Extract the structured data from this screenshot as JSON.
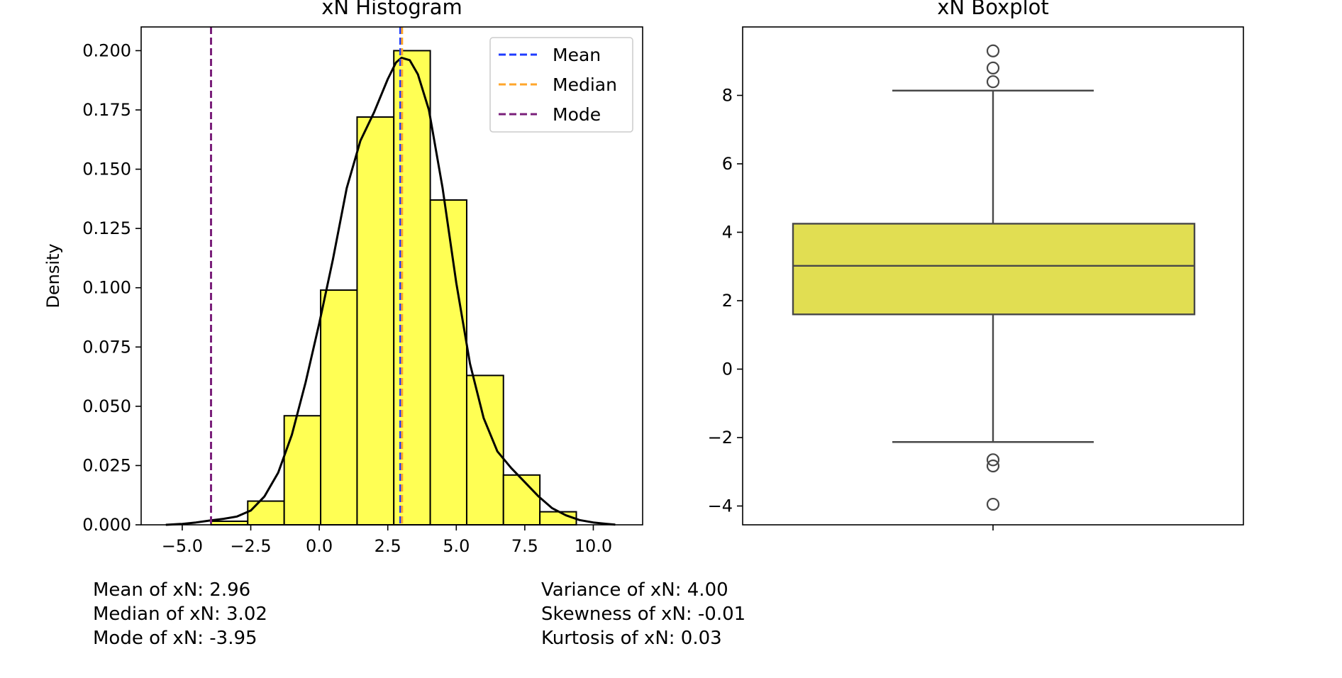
{
  "chart_data": [
    {
      "type": "bar",
      "title": "xN Histogram",
      "xlabel": "",
      "ylabel": "Density",
      "xlim": [
        -6.5,
        11.8
      ],
      "ylim": [
        0,
        0.21
      ],
      "xticks": [
        "−5.0",
        "−2.5",
        "0.0",
        "2.5",
        "5.0",
        "7.5",
        "10.0"
      ],
      "xtick_values": [
        -5,
        -2.5,
        0,
        2.5,
        5,
        7.5,
        10
      ],
      "yticks": [
        "0.000",
        "0.025",
        "0.050",
        "0.075",
        "0.100",
        "0.125",
        "0.150",
        "0.175",
        "0.200"
      ],
      "ytick_values": [
        0,
        0.025,
        0.05,
        0.075,
        0.1,
        0.125,
        0.15,
        0.175,
        0.2
      ],
      "bins": [
        {
          "x0": -3.95,
          "x1": -2.61,
          "value": 0.0015
        },
        {
          "x0": -2.61,
          "x1": -1.28,
          "value": 0.01
        },
        {
          "x0": -1.28,
          "x1": 0.05,
          "value": 0.046
        },
        {
          "x0": 0.05,
          "x1": 1.38,
          "value": 0.099
        },
        {
          "x0": 1.38,
          "x1": 2.72,
          "value": 0.172
        },
        {
          "x0": 2.72,
          "x1": 4.05,
          "value": 0.2
        },
        {
          "x0": 4.05,
          "x1": 5.38,
          "value": 0.137
        },
        {
          "x0": 5.38,
          "x1": 6.72,
          "value": 0.063
        },
        {
          "x0": 6.72,
          "x1": 8.05,
          "value": 0.021
        },
        {
          "x0": 8.05,
          "x1": 9.38,
          "value": 0.0055
        }
      ],
      "kde": {
        "x": [
          -5.6,
          -5.0,
          -4.5,
          -4.0,
          -3.5,
          -3.0,
          -2.5,
          -2.0,
          -1.5,
          -1.0,
          -0.5,
          0.0,
          0.5,
          1.0,
          1.5,
          2.0,
          2.5,
          2.8,
          3.0,
          3.3,
          3.6,
          4.0,
          4.5,
          5.0,
          5.5,
          6.0,
          6.5,
          7.0,
          7.5,
          8.0,
          8.5,
          9.0,
          9.5,
          10.0,
          10.5,
          10.8
        ],
        "y": [
          0.0,
          0.0004,
          0.001,
          0.0018,
          0.0025,
          0.0035,
          0.006,
          0.012,
          0.022,
          0.038,
          0.06,
          0.085,
          0.112,
          0.142,
          0.162,
          0.174,
          0.188,
          0.195,
          0.197,
          0.196,
          0.19,
          0.175,
          0.142,
          0.102,
          0.068,
          0.045,
          0.031,
          0.024,
          0.018,
          0.012,
          0.007,
          0.004,
          0.002,
          0.001,
          0.0004,
          0.0001
        ]
      },
      "lines": [
        {
          "name": "Mean",
          "x": 2.96,
          "color": "#1f3bff"
        },
        {
          "name": "Median",
          "x": 3.02,
          "color": "#ffa62b"
        },
        {
          "name": "Mode",
          "x": -3.95,
          "color": "#7a1f7a"
        }
      ],
      "legend_placement": "top-right",
      "bar_color": "#ffff54",
      "kde_color": "#000000"
    },
    {
      "type": "boxplot",
      "title": "xN Boxplot",
      "xlabel": "",
      "ylabel": "",
      "ylim": [
        -4.55,
        10.0
      ],
      "yticks": [
        "−4",
        "−2",
        "0",
        "2",
        "4",
        "6",
        "8"
      ],
      "ytick_values": [
        -4,
        -2,
        0,
        2,
        4,
        6,
        8
      ],
      "box": {
        "q1": 1.6,
        "median": 3.02,
        "q3": 4.25,
        "whisker_low": -2.13,
        "whisker_high": 8.14
      },
      "outliers": [
        9.3,
        8.8,
        8.4,
        -2.65,
        -2.83,
        -3.95
      ],
      "box_color": "#e1de52",
      "line_color": "#484848"
    }
  ],
  "stats": {
    "left": [
      "Mean of xN: 2.96",
      "Median of xN: 3.02",
      "Mode of xN: -3.95"
    ],
    "right": [
      "Variance of xN: 4.00",
      "Skewness of xN: -0.01",
      "Kurtosis of xN: 0.03"
    ]
  }
}
